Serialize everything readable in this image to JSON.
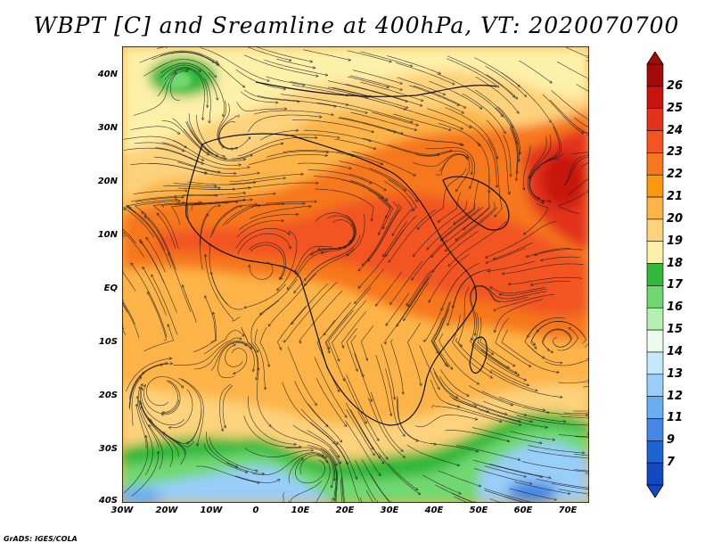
{
  "title": "WBPT [C] and Sreamline at 400hPa, VT: 2020070700",
  "credit": "GrADS: IGES/COLA",
  "map": {
    "lon_range": [
      -30,
      75
    ],
    "lat_range": [
      -40,
      45
    ],
    "lat_labels": [
      "40N",
      "30N",
      "20N",
      "10N",
      "EQ",
      "10S",
      "20S",
      "30S",
      "40S"
    ],
    "lon_labels": [
      "30W",
      "20W",
      "10W",
      "0",
      "10E",
      "20E",
      "30E",
      "40E",
      "50E",
      "60E",
      "70E"
    ]
  },
  "colorbar": {
    "labels": [
      "26",
      "25",
      "24",
      "23",
      "22",
      "21",
      "20",
      "19",
      "18",
      "17",
      "16",
      "15",
      "14",
      "13",
      "12",
      "11",
      "9",
      "7"
    ],
    "colors": [
      "#a50a0a",
      "#c8140e",
      "#e2321c",
      "#f25522",
      "#f6771e",
      "#f8990f",
      "#fcb449",
      "#fdd27c",
      "#fdf0a8",
      "#33b83a",
      "#71d871",
      "#b4f0b0",
      "#ecfcec",
      "#c4e8fc",
      "#98cef8",
      "#6aaef2",
      "#4488e4",
      "#1c64d0",
      "#1248c0"
    ]
  }
}
